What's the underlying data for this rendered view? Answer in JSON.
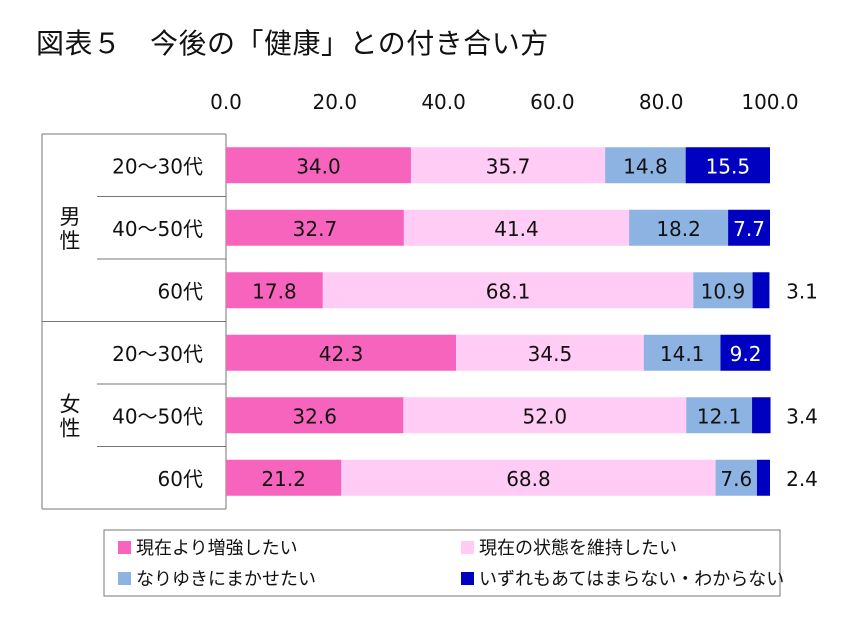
{
  "title": "図表５　今後の「健康」との付き合い方",
  "chart_data": {
    "type": "bar",
    "stacked": true,
    "orientation": "horizontal",
    "xlim": [
      0,
      100
    ],
    "x_tick_labels": [
      "0.0",
      "20.0",
      "40.0",
      "60.0",
      "80.0",
      "100.0"
    ],
    "x_ticks": [
      0,
      20,
      40,
      60,
      80,
      100
    ],
    "groups": [
      {
        "label": "男性",
        "categories": [
          "20～30代",
          "40～50代",
          "60代"
        ]
      },
      {
        "label": "女性",
        "categories": [
          "20～30代",
          "40～50代",
          "60代"
        ]
      }
    ],
    "series": [
      {
        "name": "現在より増強したい",
        "color": "#f764bd",
        "label_color": "#111111",
        "values": [
          34.0,
          32.7,
          17.8,
          42.3,
          32.6,
          21.2
        ],
        "labels": [
          "34.0",
          "32.7",
          "17.8",
          "42.3",
          "32.6",
          "21.2"
        ]
      },
      {
        "name": "現在の状態を維持したい",
        "color": "#ffccf5",
        "label_color": "#111111",
        "values": [
          35.7,
          41.4,
          68.1,
          34.5,
          52.0,
          68.8
        ],
        "labels": [
          "35.7",
          "41.4",
          "68.1",
          "34.5",
          "52.0",
          "68.8"
        ]
      },
      {
        "name": "なりゆきにまかせたい",
        "color": "#8db3e2",
        "label_color": "#111111",
        "values": [
          14.8,
          18.2,
          10.9,
          14.1,
          12.1,
          7.6
        ],
        "labels": [
          "14.8",
          "18.2",
          "10.9",
          "14.1",
          "12.1",
          "7.6"
        ]
      },
      {
        "name": "いずれもあてはまらない・わからない",
        "color": "#0000c0",
        "label_color": "#ffffff",
        "values": [
          15.5,
          7.7,
          3.1,
          9.2,
          3.4,
          2.4
        ],
        "labels": [
          "15.5",
          "7.7",
          "3.1",
          "9.2",
          "3.4",
          "2.4"
        ],
        "label_outside": [
          false,
          false,
          true,
          false,
          true,
          true
        ]
      }
    ],
    "legend_position": "bottom"
  }
}
